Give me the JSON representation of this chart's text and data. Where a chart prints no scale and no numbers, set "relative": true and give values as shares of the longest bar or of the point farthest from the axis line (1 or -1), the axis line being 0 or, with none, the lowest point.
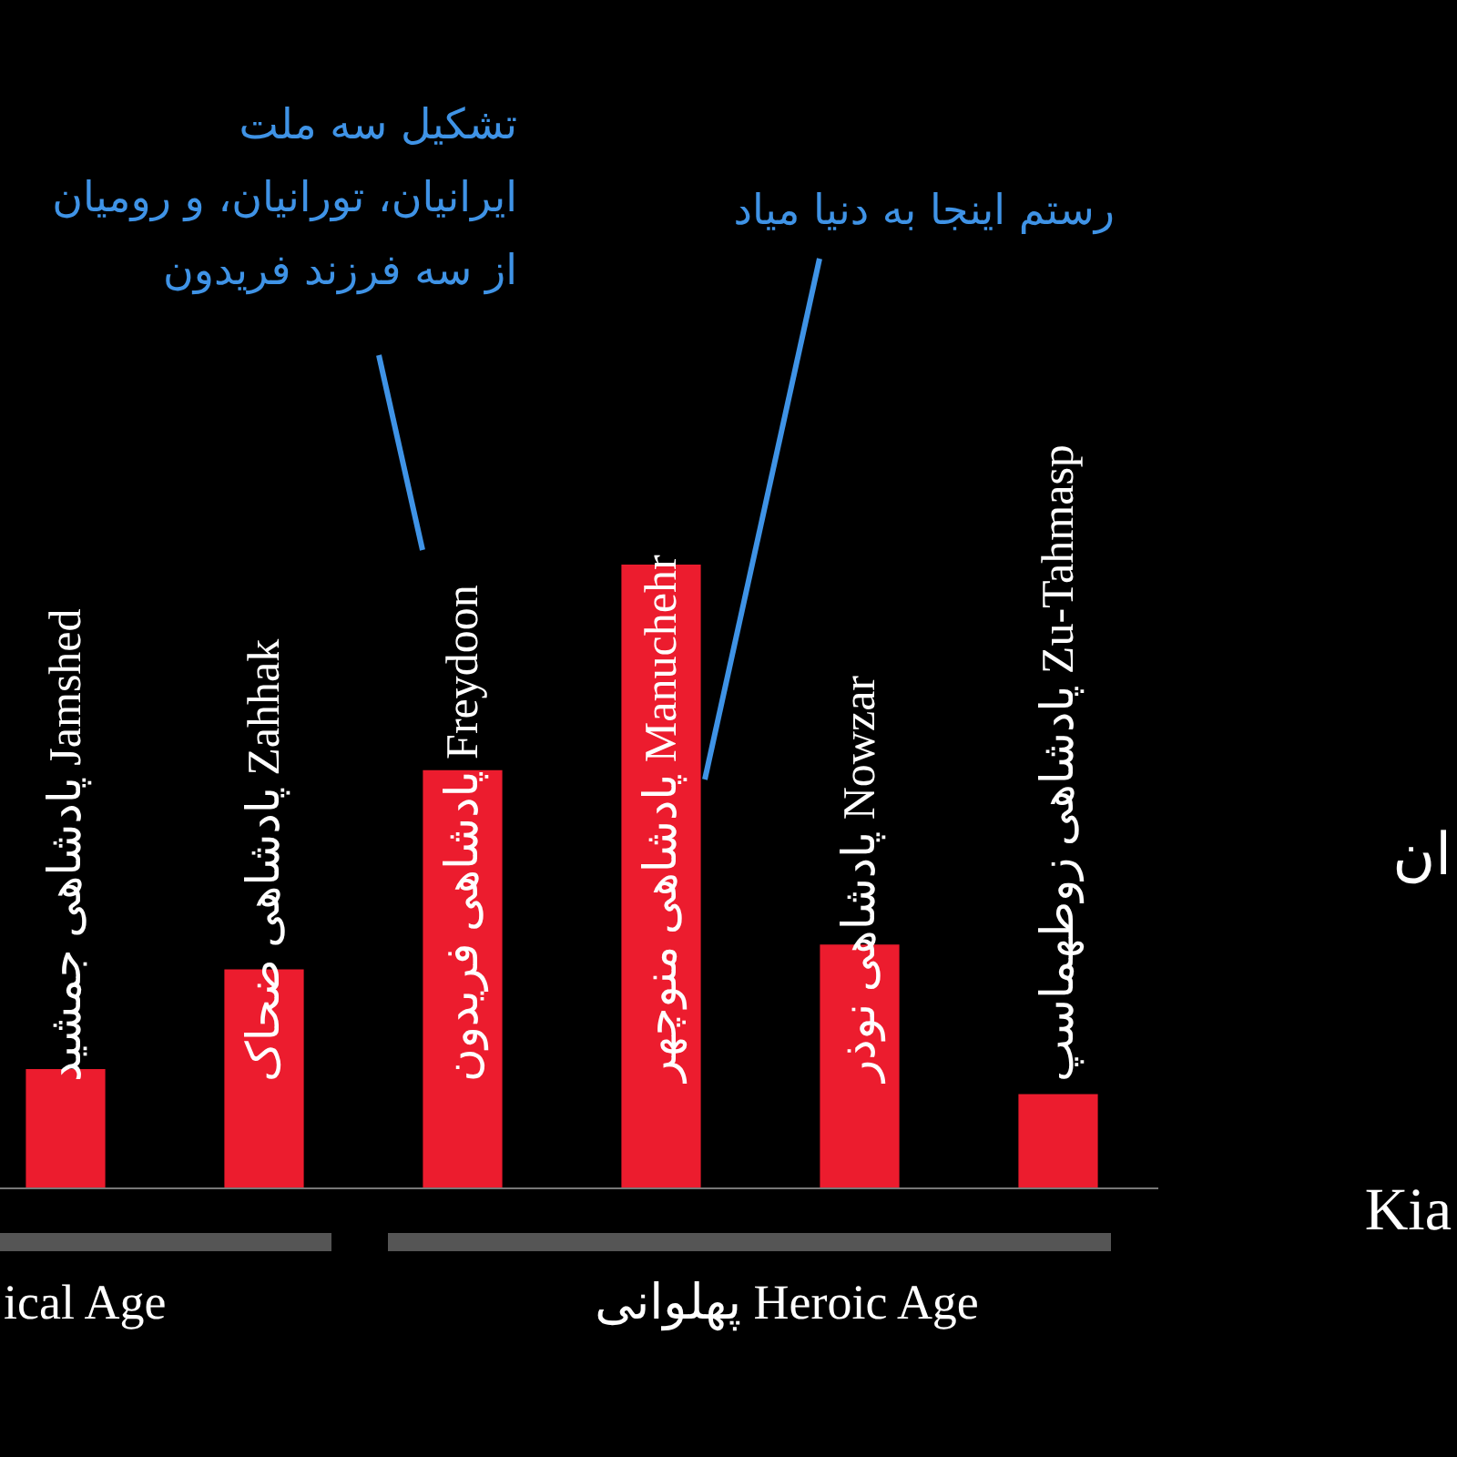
{
  "chart_data": {
    "type": "bar",
    "relative": true,
    "categories": [
      "پادشاهی جمشید Jamshed",
      "پادشاهی ضحاک Zahhak",
      "پادشاهی فریدون Freydoon",
      "پادشاهی منوچهر Manuchehr",
      "پادشاهی نوذر Nowzar",
      "پادشاهی زوطهماسپ Zu-Tahmasp"
    ],
    "values": [
      0.19,
      0.35,
      0.67,
      1,
      0.39,
      0.15
    ],
    "color": "#ec1c2e",
    "annotations": [
      "تشکیل سه ملت\nایرانیان، تورانیان، و رومیان\nاز سه فرزند فریدون",
      "رستم اینجا به دنیا میاد",
      "ical Age",
      "پهلوانی Heroic Age",
      "Kia",
      "ان"
    ]
  }
}
